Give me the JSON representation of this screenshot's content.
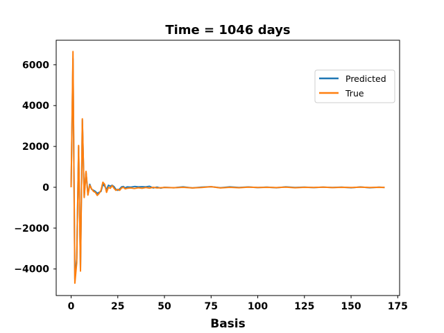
{
  "chart_data": {
    "type": "line",
    "title": "Time = 1046 days",
    "xlabel": "Basis",
    "ylabel": "",
    "xlim": [
      -8,
      176
    ],
    "ylim": [
      -5300,
      7200
    ],
    "xticks": [
      0,
      25,
      50,
      75,
      100,
      125,
      150,
      175
    ],
    "xtick_labels": [
      "0",
      "25",
      "50",
      "75",
      "100",
      "125",
      "150",
      "175"
    ],
    "yticks": [
      -4000,
      -2000,
      0,
      2000,
      4000,
      6000
    ],
    "ytick_labels": [
      "−4000",
      "−2000",
      "0",
      "2000",
      "4000",
      "6000"
    ],
    "grid": false,
    "legend_position": "upper-right",
    "series": [
      {
        "name": "Predicted",
        "color": "#1f77b4",
        "x": [
          0,
          1,
          2,
          3,
          4,
          5,
          6,
          7,
          8,
          9,
          10,
          11,
          12,
          13,
          14,
          15,
          16,
          17,
          18,
          19,
          20,
          21,
          22,
          23,
          24,
          25,
          26,
          27,
          28,
          29,
          30,
          32,
          34,
          36,
          38,
          40,
          42,
          44,
          46,
          48,
          50,
          55,
          60,
          65,
          70,
          75,
          80,
          85,
          90,
          95,
          100,
          105,
          110,
          115,
          120,
          125,
          130,
          135,
          140,
          145,
          150,
          155,
          160,
          165,
          168
        ],
        "values": [
          0,
          6300,
          -4500,
          -3500,
          2000,
          -4000,
          3300,
          -450,
          750,
          -350,
          150,
          -100,
          -150,
          -200,
          -300,
          -250,
          -200,
          150,
          50,
          -100,
          100,
          50,
          100,
          30,
          -100,
          -150,
          -80,
          20,
          40,
          -30,
          20,
          10,
          40,
          20,
          30,
          20,
          50,
          -30,
          10,
          -40,
          0,
          -20,
          20,
          -30,
          10,
          30,
          -20,
          20,
          -10,
          15,
          -15,
          10,
          -20,
          20,
          -10,
          10,
          -15,
          10,
          -10,
          10,
          -20,
          15,
          -20,
          10,
          -10
        ]
      },
      {
        "name": "True",
        "color": "#ff7f0e",
        "x": [
          0,
          1,
          2,
          3,
          4,
          5,
          6,
          7,
          8,
          9,
          10,
          11,
          12,
          13,
          14,
          15,
          16,
          17,
          18,
          19,
          20,
          21,
          22,
          23,
          24,
          25,
          26,
          27,
          28,
          29,
          30,
          32,
          34,
          36,
          38,
          40,
          42,
          44,
          46,
          48,
          50,
          55,
          60,
          65,
          70,
          75,
          80,
          85,
          90,
          95,
          100,
          105,
          110,
          115,
          120,
          125,
          130,
          135,
          140,
          145,
          150,
          155,
          160,
          165,
          168
        ],
        "values": [
          0,
          6650,
          -4700,
          -3700,
          2050,
          -4100,
          3350,
          -500,
          780,
          -380,
          100,
          -80,
          -200,
          -250,
          -400,
          -300,
          -150,
          250,
          150,
          -250,
          0,
          -50,
          80,
          -50,
          -150,
          -100,
          -150,
          -30,
          0,
          -80,
          -50,
          -30,
          -60,
          -20,
          -50,
          -10,
          -40,
          0,
          -30,
          -20,
          -10,
          -20,
          0,
          -30,
          -10,
          30,
          -30,
          0,
          -20,
          10,
          -10,
          0,
          -15,
          10,
          -20,
          0,
          -10,
          5,
          -15,
          0,
          -10,
          5,
          -10,
          0,
          -5
        ]
      }
    ]
  }
}
